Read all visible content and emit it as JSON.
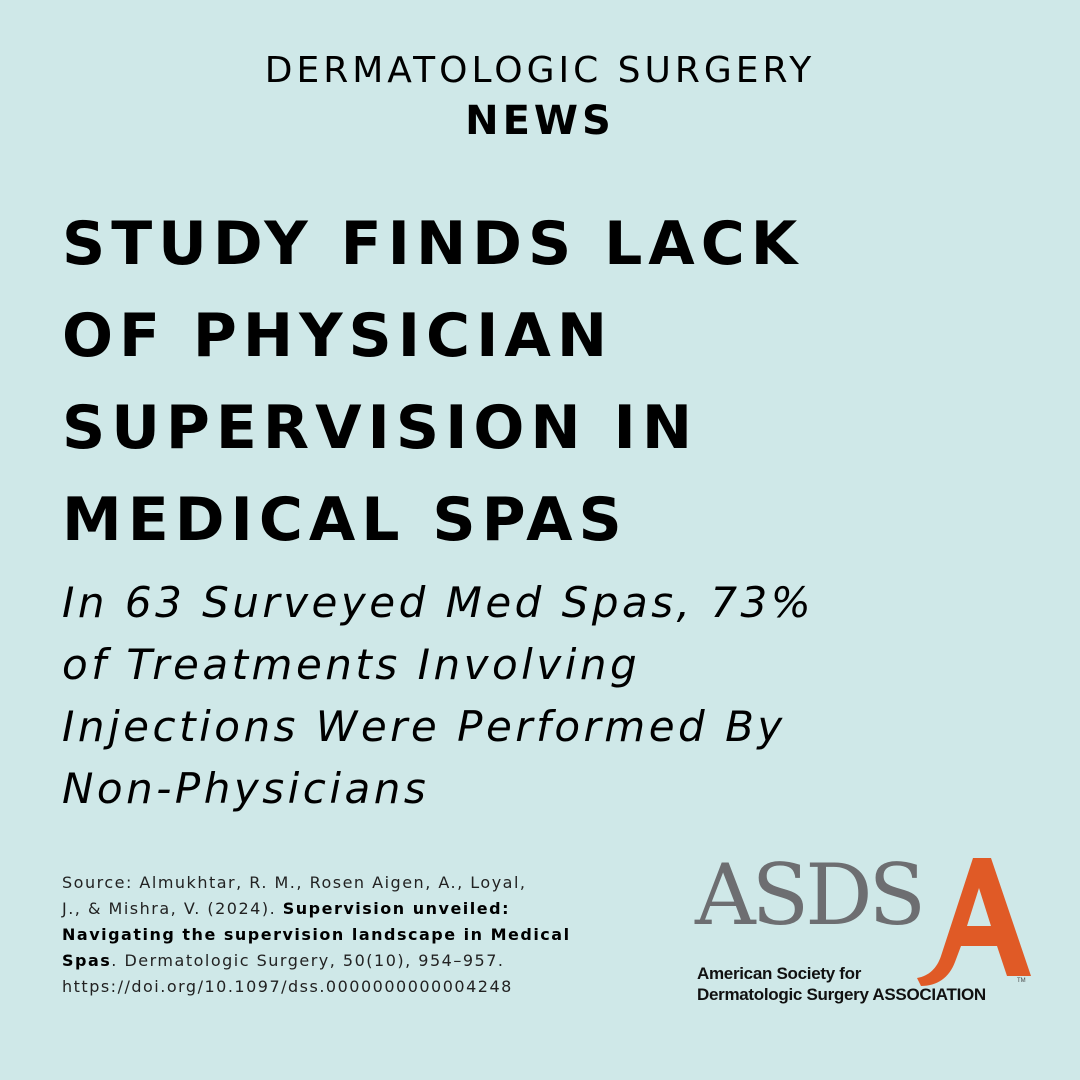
{
  "header": {
    "kicker": "DERMATOLOGIC SURGERY",
    "section": "NEWS"
  },
  "headline": {
    "lines": [
      "STUDY FINDS LACK",
      "OF PHYSICIAN",
      "SUPERVISION IN",
      "MEDICAL SPAS"
    ]
  },
  "subhead": {
    "lines": [
      "In 63 Surveyed Med Spas, 73%",
      "of Treatments Involving",
      "Injections Were Performed By",
      "Non-Physicians"
    ]
  },
  "source": {
    "line1": "Source: Almukhtar, R. M., Rosen Aigen, A., Loyal,",
    "line2_normal": "J., & Mishra, V. (2024). ",
    "line2_bold": "Supervision unveiled:",
    "line3_bold": "Navigating the supervision landscape in Medical",
    "line4_bold": "Spas",
    "line4_normal": ". Dermatologic Surgery, 50(10), 954–957.",
    "line5": "https://doi.org/10.1097/dss.0000000000004248"
  },
  "logo": {
    "letters": "ASDS",
    "tm": "TM",
    "line1": "American Society for",
    "line2": "Dermatologic Surgery ASSOCIATION",
    "accent_color": "#e05a26",
    "letters_color": "#6d6e71"
  },
  "colors": {
    "background": "#cfe8e8",
    "text": "#000000"
  }
}
